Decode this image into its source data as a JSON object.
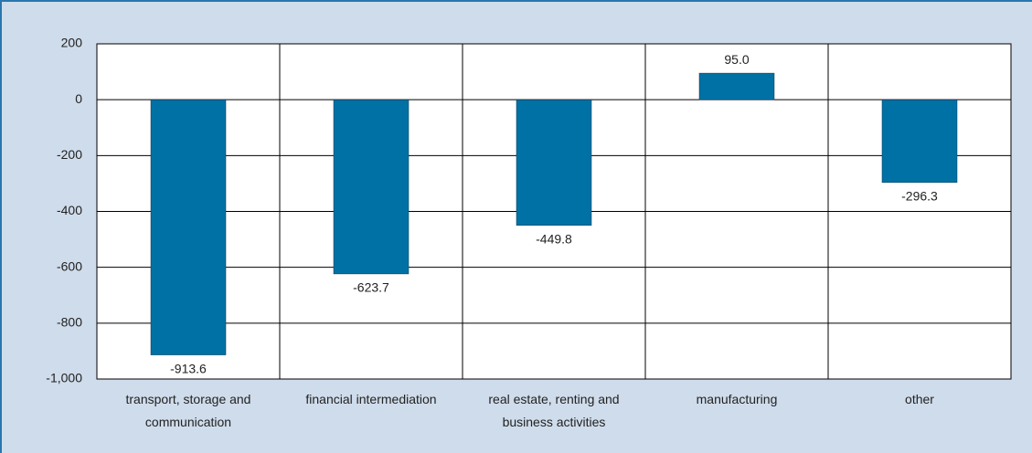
{
  "chart_data": {
    "type": "bar",
    "categories": [
      "transport, storage and communication",
      "financial intermediation",
      "real estate, renting and business activities",
      "manufacturing",
      "other"
    ],
    "values": [
      -913.6,
      -623.7,
      -449.8,
      95.0,
      -296.3
    ],
    "value_labels": [
      "-913.6",
      "-623.7",
      "-449.8",
      "95.0",
      "-296.3"
    ],
    "color": "#0071a4",
    "ylim": [
      -1000,
      200
    ],
    "yticks": [
      {
        "value": -1000,
        "label": "-1,000"
      },
      -800,
      -600,
      -400,
      -200,
      0,
      200
    ],
    "grid": true
  }
}
